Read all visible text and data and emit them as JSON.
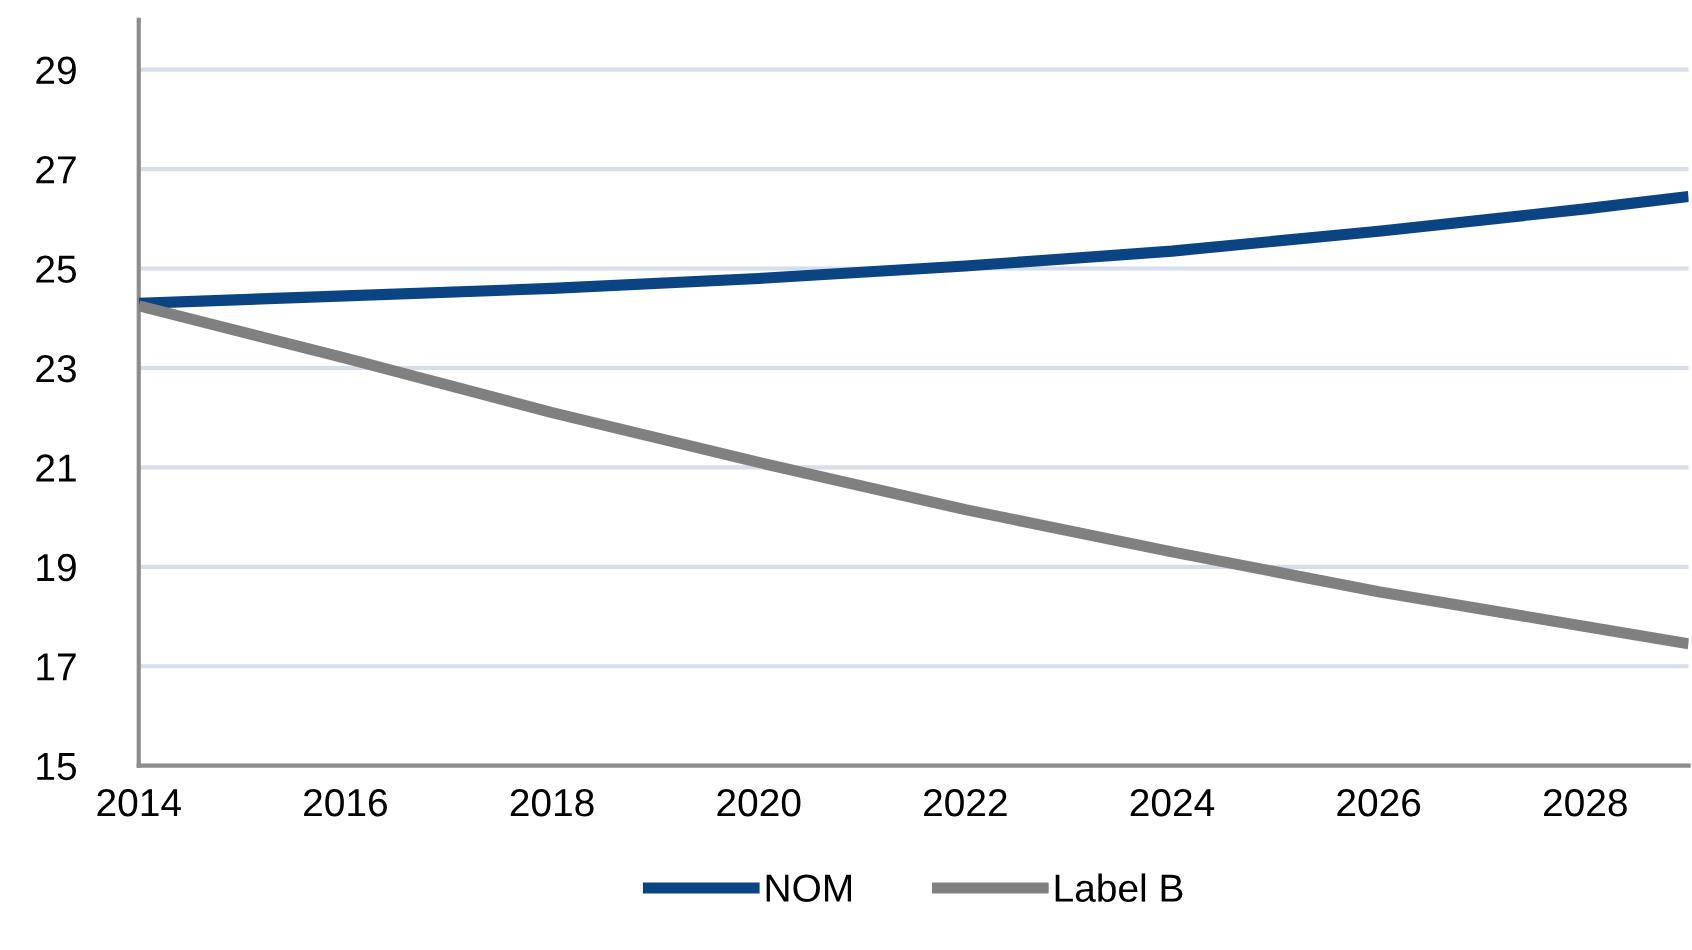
{
  "chart_data": {
    "type": "line",
    "x": [
      2014,
      2016,
      2018,
      2020,
      2022,
      2024,
      2026,
      2028,
      2029
    ],
    "series": [
      {
        "name": "NOM",
        "color": "#0b4483",
        "values": [
          24.3,
          24.45,
          24.6,
          24.8,
          25.05,
          25.35,
          25.75,
          26.2,
          26.45
        ]
      },
      {
        "name": "Label B",
        "color": "#808080",
        "values": [
          24.25,
          23.2,
          22.1,
          21.1,
          20.15,
          19.3,
          18.5,
          17.8,
          17.45
        ]
      }
    ],
    "xlim": [
      2014,
      2029
    ],
    "xticks": [
      2014,
      2016,
      2018,
      2020,
      2022,
      2024,
      2026,
      2028
    ],
    "ylim": [
      15,
      30
    ],
    "yticks": [
      15,
      17,
      19,
      21,
      23,
      25,
      27,
      29
    ],
    "grid": "y",
    "legend": "bottom",
    "marker": "none",
    "line_style": "solid"
  }
}
